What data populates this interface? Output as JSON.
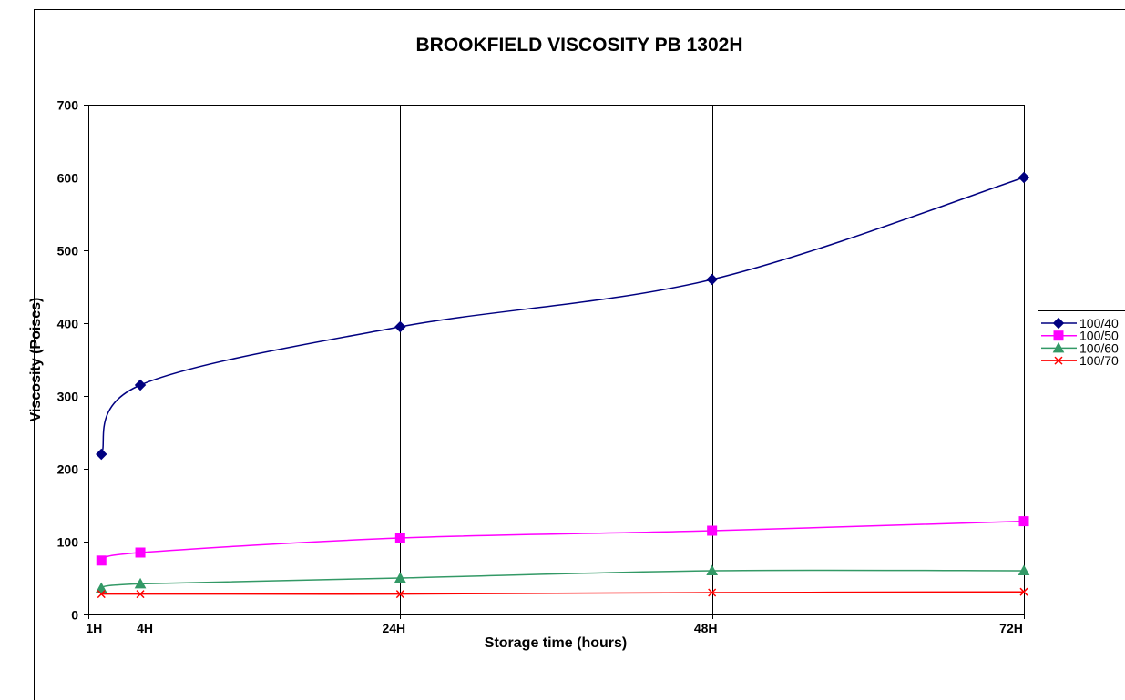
{
  "chart_data": {
    "type": "line",
    "title": "BROOKFIELD VISCOSITY PB 1302H",
    "xlabel": "Storage time (hours)",
    "ylabel": "Viscosity (Poises)",
    "x": [
      1,
      4,
      24,
      48,
      72
    ],
    "x_tick_labels": [
      "1H",
      "4H",
      "24H",
      "48H",
      "72H"
    ],
    "xlim": [
      0,
      72
    ],
    "x_major_unit": 24,
    "ylim": [
      0,
      700
    ],
    "y_ticks": [
      0,
      100,
      200,
      300,
      400,
      500,
      600,
      700
    ],
    "x_grid": true,
    "y_grid": false,
    "smoothed": true,
    "legend_position": "right",
    "series": [
      {
        "name": "100/40",
        "color": "#000080",
        "marker": "diamond",
        "values": [
          220,
          315,
          395,
          460,
          600
        ]
      },
      {
        "name": "100/50",
        "color": "#FF00FF",
        "marker": "square",
        "values": [
          74,
          85,
          105,
          115,
          128
        ]
      },
      {
        "name": "100/60",
        "color": "#339966",
        "marker": "triangle",
        "values": [
          36,
          42,
          50,
          60,
          60
        ]
      },
      {
        "name": "100/70",
        "color": "#FF0000",
        "marker": "x",
        "values": [
          28,
          28,
          28,
          30,
          31
        ]
      }
    ]
  }
}
